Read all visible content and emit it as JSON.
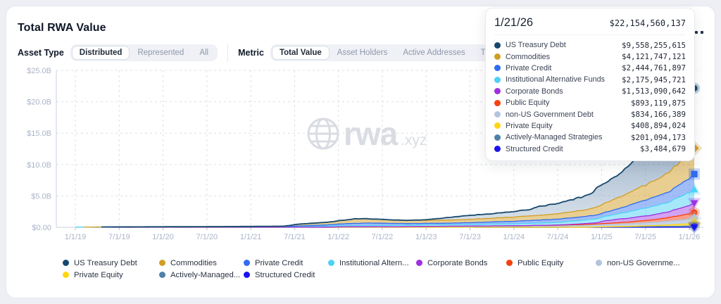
{
  "header": {
    "title": "Total RWA Value"
  },
  "controls": {
    "asset_type": {
      "label": "Asset Type",
      "options": [
        "Distributed",
        "Represented",
        "All"
      ],
      "selected_index": 0
    },
    "metric": {
      "label": "Metric",
      "options": [
        "Total Value",
        "Asset Holders",
        "Active Addresses",
        "Transfer Volume"
      ],
      "selected_index": 0
    }
  },
  "more_menu": {
    "icon": "ellipsis-icon"
  },
  "watermark": {
    "icon": "globe-icon",
    "brand": "rwa",
    "tld": ".xyz",
    "color": "#d9dce2"
  },
  "tooltip": {
    "date": "1/21/26",
    "total": "$22,154,560,137",
    "rows": [
      {
        "name": "US Treasury Debt",
        "value": "$9,558,255,615"
      },
      {
        "name": "Commodities",
        "value": "$4,121,747,121"
      },
      {
        "name": "Private Credit",
        "value": "$2,444,761,897"
      },
      {
        "name": "Institutional Alternative Funds",
        "value": "$2,175,945,721"
      },
      {
        "name": "Corporate Bonds",
        "value": "$1,513,090,642"
      },
      {
        "name": "Public Equity",
        "value": "$893,119,875"
      },
      {
        "name": "non-US Government Debt",
        "value": "$834,166,389"
      },
      {
        "name": "Private Equity",
        "value": "$408,894,024"
      },
      {
        "name": "Actively-Managed Strategies",
        "value": "$201,094,173"
      },
      {
        "name": "Structured Credit",
        "value": "$3,484,679"
      }
    ]
  },
  "legend": {
    "labels": [
      "US Treasury Debt",
      "Commodities",
      "Private Credit",
      "Institutional Altern...",
      "Corporate Bonds",
      "Public Equity",
      "non-US Governme...",
      "Private Equity",
      "Actively-Managed...",
      "Structured Credit"
    ]
  },
  "chart_data": {
    "type": "area",
    "stacked": true,
    "stack_note": "series listed top-of-stack first; cumulative top of first series = total",
    "title": "Total RWA Value",
    "xlabel": "",
    "ylabel": "",
    "ylim": [
      0,
      25
    ],
    "y_tick_labels": [
      "$0.00",
      "$5.0B",
      "$10.0B",
      "$15.0B",
      "$20.0B",
      "$25.0B"
    ],
    "x_tick_labels": [
      "1/1/19",
      "7/1/19",
      "1/1/20",
      "7/1/20",
      "1/1/21",
      "7/1/21",
      "1/1/22",
      "7/1/22",
      "1/1/23",
      "7/1/23",
      "1/1/24",
      "7/1/24",
      "1/1/25",
      "7/1/25",
      "1/1/26"
    ],
    "x_start": 2019.0,
    "x_end": 2026.057,
    "grid": "dashed",
    "legend_position": "bottom",
    "units": "USD billions",
    "series": [
      {
        "name": "US Treasury Debt",
        "color": "#17486d",
        "marker": "circle",
        "fill_opacity": 0.0,
        "noise": 0.05,
        "final_usd": 9558255615,
        "points": [
          [
            2019,
            0
          ],
          [
            2022.85,
            0.01
          ],
          [
            2023.0,
            0.1
          ],
          [
            2023.2,
            0.35
          ],
          [
            2023.45,
            0.62
          ],
          [
            2023.7,
            0.7
          ],
          [
            2024.0,
            0.87
          ],
          [
            2024.18,
            1.0
          ],
          [
            2024.28,
            1.4
          ],
          [
            2024.5,
            1.65
          ],
          [
            2024.7,
            2.0
          ],
          [
            2024.88,
            2.35
          ],
          [
            2024.94,
            3.0
          ],
          [
            2025.05,
            3.2
          ],
          [
            2025.15,
            3.45
          ],
          [
            2025.3,
            4.3
          ],
          [
            2025.45,
            5.3
          ],
          [
            2025.55,
            5.9
          ],
          [
            2025.68,
            6.3
          ],
          [
            2025.8,
            7.0
          ],
          [
            2025.9,
            7.9
          ],
          [
            2025.97,
            8.9
          ],
          [
            2026.02,
            9.2
          ],
          [
            2026.057,
            9.558
          ]
        ]
      },
      {
        "name": "Commodities",
        "color": "#d19e24",
        "marker": "diamond",
        "fill_opacity": 0.5,
        "noise": 0.05,
        "final_usd": 4121747121,
        "points": [
          [
            2019,
            0
          ],
          [
            2021.38,
            0.02
          ],
          [
            2021.5,
            0.24
          ],
          [
            2021.68,
            0.35
          ],
          [
            2021.85,
            0.4
          ],
          [
            2022.05,
            0.55
          ],
          [
            2022.2,
            0.72
          ],
          [
            2022.4,
            0.65
          ],
          [
            2022.6,
            0.55
          ],
          [
            2022.85,
            0.5
          ],
          [
            2023.1,
            0.48
          ],
          [
            2023.4,
            0.52
          ],
          [
            2023.7,
            0.58
          ],
          [
            2024.0,
            0.68
          ],
          [
            2024.3,
            0.78
          ],
          [
            2024.6,
            0.9
          ],
          [
            2024.85,
            1.1
          ],
          [
            2025.0,
            1.38
          ],
          [
            2025.15,
            1.72
          ],
          [
            2025.3,
            1.98
          ],
          [
            2025.45,
            2.32
          ],
          [
            2025.6,
            2.62
          ],
          [
            2025.75,
            3.02
          ],
          [
            2025.9,
            3.52
          ],
          [
            2026.0,
            3.88
          ],
          [
            2026.057,
            4.122
          ]
        ]
      },
      {
        "name": "Private Credit",
        "color": "#2e6cf0",
        "marker": "square",
        "fill_opacity": 0.45,
        "noise": 0.06,
        "final_usd": 2444761897,
        "points": [
          [
            2019,
            0
          ],
          [
            2021.45,
            0.01
          ],
          [
            2021.6,
            0.08
          ],
          [
            2021.9,
            0.2
          ],
          [
            2022.1,
            0.32
          ],
          [
            2022.35,
            0.38
          ],
          [
            2022.6,
            0.3
          ],
          [
            2022.9,
            0.24
          ],
          [
            2023.2,
            0.23
          ],
          [
            2023.6,
            0.3
          ],
          [
            2024.0,
            0.4
          ],
          [
            2024.4,
            0.5
          ],
          [
            2024.8,
            0.56
          ],
          [
            2025.0,
            0.62
          ],
          [
            2025.2,
            0.82
          ],
          [
            2025.4,
            1.12
          ],
          [
            2025.6,
            1.42
          ],
          [
            2025.8,
            1.75
          ],
          [
            2025.95,
            2.12
          ],
          [
            2026.057,
            2.445
          ]
        ]
      },
      {
        "name": "Institutional Alternative Funds",
        "color": "#4ed1f6",
        "marker": "triangle-up",
        "fill_opacity": 0.5,
        "noise": 0.05,
        "final_usd": 2175945721,
        "points": [
          [
            2019,
            0.04
          ],
          [
            2019.5,
            0.05
          ],
          [
            2020,
            0.06
          ],
          [
            2020.5,
            0.07
          ],
          [
            2021,
            0.09
          ],
          [
            2021.5,
            0.13
          ],
          [
            2022,
            0.18
          ],
          [
            2022.5,
            0.22
          ],
          [
            2023,
            0.24
          ],
          [
            2023.5,
            0.27
          ],
          [
            2024,
            0.31
          ],
          [
            2024.5,
            0.42
          ],
          [
            2024.8,
            0.56
          ],
          [
            2025,
            0.66
          ],
          [
            2025.2,
            0.86
          ],
          [
            2025.4,
            1.12
          ],
          [
            2025.6,
            1.36
          ],
          [
            2025.8,
            1.62
          ],
          [
            2025.95,
            1.96
          ],
          [
            2026.057,
            2.176
          ]
        ]
      },
      {
        "name": "Corporate Bonds",
        "color": "#9e30e0",
        "marker": "triangle-down",
        "fill_opacity": 0.45,
        "noise": 0.05,
        "final_usd": 1513090642,
        "points": [
          [
            2019,
            0
          ],
          [
            2024.35,
            0.01
          ],
          [
            2024.6,
            0.06
          ],
          [
            2024.8,
            0.13
          ],
          [
            2024.95,
            0.2
          ],
          [
            2025.03,
            0.42
          ],
          [
            2025.2,
            0.55
          ],
          [
            2025.4,
            0.66
          ],
          [
            2025.6,
            0.79
          ],
          [
            2025.8,
            0.97
          ],
          [
            2025.95,
            1.26
          ],
          [
            2026.057,
            1.513
          ]
        ]
      },
      {
        "name": "Public Equity",
        "color": "#f6400f",
        "marker": "circle",
        "fill_opacity": 0.5,
        "noise": 0.06,
        "final_usd": 893119875,
        "points": [
          [
            2019,
            0
          ],
          [
            2022.7,
            0.005
          ],
          [
            2022.85,
            0.02
          ],
          [
            2023.0,
            0.04
          ],
          [
            2023.5,
            0.055
          ],
          [
            2024.0,
            0.075
          ],
          [
            2024.5,
            0.1
          ],
          [
            2025.0,
            0.16
          ],
          [
            2025.3,
            0.28
          ],
          [
            2025.6,
            0.46
          ],
          [
            2025.8,
            0.62
          ],
          [
            2025.95,
            0.79
          ],
          [
            2026.057,
            0.893
          ]
        ]
      },
      {
        "name": "non-US Government Debt",
        "color": "#b3c4de",
        "marker": "diamond",
        "fill_opacity": 0.75,
        "noise": 0.04,
        "final_usd": 834166389,
        "points": [
          [
            2019,
            0
          ],
          [
            2021.85,
            0.01
          ],
          [
            2022.0,
            0.05
          ],
          [
            2022.5,
            0.08
          ],
          [
            2023.0,
            0.1
          ],
          [
            2023.5,
            0.12
          ],
          [
            2024.0,
            0.16
          ],
          [
            2024.5,
            0.22
          ],
          [
            2025.0,
            0.33
          ],
          [
            2025.3,
            0.4
          ],
          [
            2025.6,
            0.5
          ],
          [
            2025.85,
            0.62
          ],
          [
            2026.0,
            0.76
          ],
          [
            2026.057,
            0.834
          ]
        ]
      },
      {
        "name": "Private Equity",
        "color": "#ffd60f",
        "marker": "diamond",
        "fill_opacity": 0.6,
        "noise": 0.05,
        "final_usd": 408894024,
        "points": [
          [
            2019,
            0
          ],
          [
            2024.85,
            0.005
          ],
          [
            2025.0,
            0.03
          ],
          [
            2025.3,
            0.08
          ],
          [
            2025.55,
            0.14
          ],
          [
            2025.75,
            0.22
          ],
          [
            2025.9,
            0.3
          ],
          [
            2026.0,
            0.37
          ],
          [
            2026.057,
            0.409
          ]
        ]
      },
      {
        "name": "Actively-Managed Strategies",
        "color": "#4f80a9",
        "marker": "circle",
        "fill_opacity": 0.55,
        "noise": 0.04,
        "final_usd": 201094173,
        "points": [
          [
            2019,
            0
          ],
          [
            2024.5,
            0.004
          ],
          [
            2024.8,
            0.02
          ],
          [
            2025.0,
            0.05
          ],
          [
            2025.3,
            0.08
          ],
          [
            2025.6,
            0.12
          ],
          [
            2025.85,
            0.16
          ],
          [
            2026.057,
            0.201
          ]
        ]
      },
      {
        "name": "Structured Credit",
        "color": "#1a12ef",
        "marker": "triangle-down",
        "fill_opacity": 0.55,
        "noise": 0.02,
        "final_usd": 3484679,
        "points": [
          [
            2019,
            0
          ],
          [
            2024.7,
            0.001
          ],
          [
            2024.9,
            0.002
          ],
          [
            2026.057,
            0.0035
          ]
        ]
      }
    ]
  }
}
